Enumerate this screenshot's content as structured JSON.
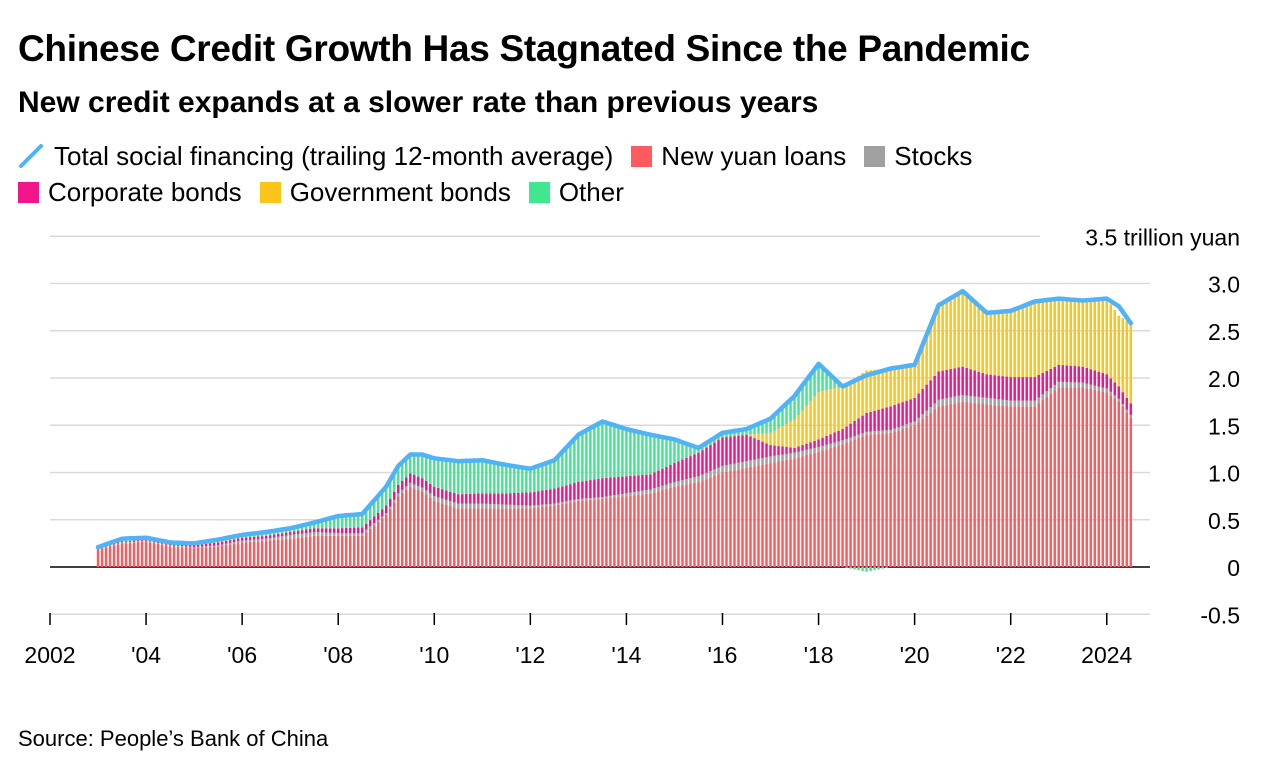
{
  "title": "Chinese Credit Growth Has Stagnated Since the Pandemic",
  "subtitle": "New credit expands at a slower rate than previous years",
  "source": "Source: People’s Bank of China",
  "legend": [
    {
      "label": "Total social financing (trailing 12-month average)",
      "color": "#4FB3F6",
      "kind": "line"
    },
    {
      "label": "New yuan loans",
      "color": "#FF5A5F",
      "kind": "box"
    },
    {
      "label": "Stocks",
      "color": "#A0A0A0",
      "kind": "box"
    },
    {
      "label": "Corporate bonds",
      "color": "#F2148B",
      "kind": "box"
    },
    {
      "label": "Government bonds",
      "color": "#FBC419",
      "kind": "box"
    },
    {
      "label": "Other",
      "color": "#3FE890",
      "kind": "box"
    }
  ],
  "chart_data": {
    "type": "bar",
    "stacked": true,
    "unit_label": "3.5 trillion yuan",
    "ylim": [
      -0.5,
      3.5
    ],
    "y_ticks": [
      3.0,
      2.5,
      2.0,
      1.5,
      1.0,
      0.5,
      0,
      -0.5
    ],
    "y_tick_labels": [
      "3.0",
      "2.5",
      "2.0",
      "1.5",
      "1.0",
      "0.5",
      "0",
      "-0.5"
    ],
    "x_ticks": [
      2002,
      2004,
      2006,
      2008,
      2010,
      2012,
      2014,
      2016,
      2018,
      2020,
      2022,
      2024
    ],
    "x_tick_labels": [
      "2002",
      "'04",
      "'06",
      "'08",
      "'10",
      "'12",
      "'14",
      "'16",
      "'18",
      "'20",
      "'22",
      "2024"
    ],
    "xlim": [
      2002.0,
      2024.9
    ],
    "colors": {
      "new_yuan_loans": "#FF5A5F",
      "stocks": "#A0A0A0",
      "corporate_bonds": "#F2148B",
      "government_bonds": "#FBC419",
      "other": "#3FE890",
      "total": "#4FB3F6"
    },
    "grid": true,
    "legend_position": "top",
    "x_dates": [
      2003.0,
      2003.5,
      2004.0,
      2004.5,
      2005.0,
      2005.5,
      2006.0,
      2006.5,
      2007.0,
      2007.5,
      2008.0,
      2008.5,
      2009.0,
      2009.25,
      2009.5,
      2009.75,
      2010.0,
      2010.5,
      2011.0,
      2011.5,
      2012.0,
      2012.5,
      2013.0,
      2013.5,
      2014.0,
      2014.5,
      2015.0,
      2015.5,
      2016.0,
      2016.5,
      2017.0,
      2017.5,
      2018.0,
      2018.5,
      2019.0,
      2019.5,
      2020.0,
      2020.5,
      2021.0,
      2021.5,
      2022.0,
      2022.5,
      2023.0,
      2023.5,
      2024.0,
      2024.25,
      2024.5
    ],
    "series": [
      {
        "name": "New yuan loans",
        "key": "new_yuan_loans",
        "values": [
          0.19,
          0.25,
          0.27,
          0.22,
          0.2,
          0.22,
          0.26,
          0.28,
          0.3,
          0.33,
          0.33,
          0.33,
          0.55,
          0.75,
          0.85,
          0.8,
          0.7,
          0.62,
          0.62,
          0.62,
          0.62,
          0.65,
          0.7,
          0.72,
          0.75,
          0.78,
          0.85,
          0.9,
          1.0,
          1.05,
          1.1,
          1.15,
          1.22,
          1.3,
          1.4,
          1.42,
          1.5,
          1.7,
          1.75,
          1.72,
          1.7,
          1.7,
          1.9,
          1.9,
          1.85,
          1.75,
          1.58
        ]
      },
      {
        "name": "Stocks",
        "values": [
          0.01,
          0.01,
          0.01,
          0.01,
          0.01,
          0.01,
          0.02,
          0.02,
          0.04,
          0.04,
          0.03,
          0.03,
          0.02,
          0.03,
          0.04,
          0.04,
          0.05,
          0.05,
          0.05,
          0.04,
          0.03,
          0.02,
          0.02,
          0.02,
          0.03,
          0.04,
          0.05,
          0.06,
          0.07,
          0.07,
          0.07,
          0.06,
          0.05,
          0.04,
          0.03,
          0.03,
          0.04,
          0.07,
          0.07,
          0.07,
          0.06,
          0.06,
          0.06,
          0.05,
          0.04,
          0.03,
          0.03
        ]
      },
      {
        "name": "Corporate bonds",
        "values": [
          0.01,
          0.01,
          0.01,
          0.01,
          0.02,
          0.03,
          0.03,
          0.03,
          0.03,
          0.04,
          0.05,
          0.06,
          0.08,
          0.09,
          0.1,
          0.1,
          0.1,
          0.1,
          0.11,
          0.12,
          0.14,
          0.16,
          0.18,
          0.2,
          0.18,
          0.16,
          0.2,
          0.25,
          0.3,
          0.28,
          0.12,
          0.05,
          0.08,
          0.12,
          0.2,
          0.25,
          0.25,
          0.3,
          0.3,
          0.25,
          0.25,
          0.25,
          0.18,
          0.17,
          0.15,
          0.13,
          0.12
        ]
      },
      {
        "name": "Government bonds",
        "values": [
          0.0,
          0.0,
          0.0,
          0.0,
          0.0,
          0.0,
          0.0,
          0.0,
          0.0,
          0.0,
          0.0,
          0.0,
          0.0,
          0.0,
          0.0,
          0.0,
          0.0,
          0.0,
          0.0,
          0.0,
          0.0,
          0.0,
          0.0,
          0.0,
          0.0,
          0.0,
          0.0,
          0.0,
          0.0,
          0.0,
          0.13,
          0.3,
          0.5,
          0.45,
          0.45,
          0.4,
          0.35,
          0.7,
          0.8,
          0.65,
          0.7,
          0.8,
          0.7,
          0.7,
          0.8,
          0.75,
          0.85
        ]
      },
      {
        "name": "Other",
        "values": [
          0.01,
          0.03,
          0.02,
          0.02,
          0.02,
          0.03,
          0.03,
          0.04,
          0.04,
          0.06,
          0.13,
          0.14,
          0.2,
          0.2,
          0.2,
          0.25,
          0.3,
          0.35,
          0.35,
          0.3,
          0.25,
          0.3,
          0.5,
          0.6,
          0.5,
          0.42,
          0.25,
          0.05,
          0.05,
          0.06,
          0.15,
          0.25,
          0.3,
          0.0,
          -0.05,
          0.0,
          0.0,
          0.0,
          0.0,
          0.0,
          0.0,
          0.0,
          0.0,
          0.0,
          0.0,
          0.0,
          0.0
        ]
      },
      {
        "name": "Total social financing (trailing 12-month average)",
        "kind": "line",
        "values": [
          0.21,
          0.3,
          0.31,
          0.26,
          0.25,
          0.29,
          0.34,
          0.37,
          0.41,
          0.47,
          0.54,
          0.56,
          0.85,
          1.07,
          1.19,
          1.19,
          1.15,
          1.12,
          1.13,
          1.08,
          1.04,
          1.13,
          1.4,
          1.54,
          1.46,
          1.4,
          1.35,
          1.26,
          1.42,
          1.46,
          1.57,
          1.81,
          2.15,
          1.91,
          2.03,
          2.1,
          2.14,
          2.77,
          2.92,
          2.69,
          2.71,
          2.81,
          2.84,
          2.82,
          2.84,
          2.76,
          2.58
        ]
      }
    ]
  }
}
